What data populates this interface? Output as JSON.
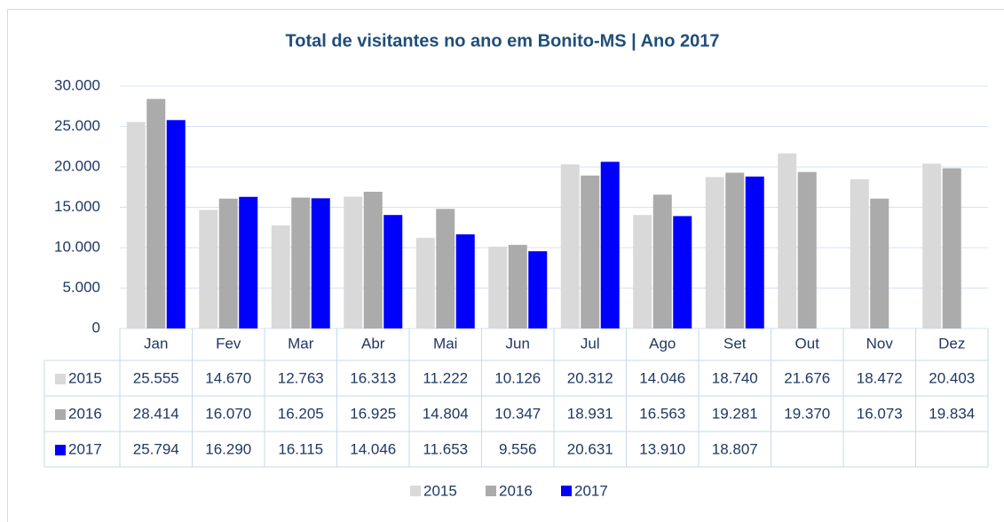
{
  "chart_data": {
    "type": "bar",
    "title": "Total de visitantes no ano em Bonito-MS | Ano 2017",
    "categories": [
      "Jan",
      "Fev",
      "Mar",
      "Abr",
      "Mai",
      "Jun",
      "Jul",
      "Ago",
      "Set",
      "Out",
      "Nov",
      "Dez"
    ],
    "series": [
      {
        "name": "2015",
        "color": "#d9d9d9",
        "values": [
          25555,
          14670,
          12763,
          16313,
          11222,
          10126,
          20312,
          14046,
          18740,
          21676,
          18472,
          20403
        ],
        "value_labels": [
          "25.555",
          "14.670",
          "12.763",
          "16.313",
          "11.222",
          "10.126",
          "20.312",
          "14.046",
          "18.740",
          "21.676",
          "18.472",
          "20.403"
        ]
      },
      {
        "name": "2016",
        "color": "#ababab",
        "values": [
          28414,
          16070,
          16205,
          16925,
          14804,
          10347,
          18931,
          16563,
          19281,
          19370,
          16073,
          19834
        ],
        "value_labels": [
          "28.414",
          "16.070",
          "16.205",
          "16.925",
          "14.804",
          "10.347",
          "18.931",
          "16.563",
          "19.281",
          "19.370",
          "16.073",
          "19.834"
        ]
      },
      {
        "name": "2017",
        "color": "#0000ff",
        "values": [
          25794,
          16290,
          16115,
          14046,
          11653,
          9556,
          20631,
          13910,
          18807,
          null,
          null,
          null
        ],
        "value_labels": [
          "25.794",
          "16.290",
          "16.115",
          "14.046",
          "11.653",
          "9.556",
          "20.631",
          "13.910",
          "18.807",
          null,
          null,
          null
        ]
      }
    ],
    "ylim": [
      0,
      30000
    ],
    "yticks": [
      0,
      {
        "value": 5000,
        "label": "5.000"
      },
      {
        "value": 10000,
        "label": "10.000"
      },
      {
        "value": 15000,
        "label": "15.000"
      },
      {
        "value": 20000,
        "label": "20.000"
      },
      {
        "value": 25000,
        "label": "25.000"
      },
      {
        "value": 30000,
        "label": "30.000"
      }
    ],
    "grid": true,
    "legend": "bottom"
  }
}
